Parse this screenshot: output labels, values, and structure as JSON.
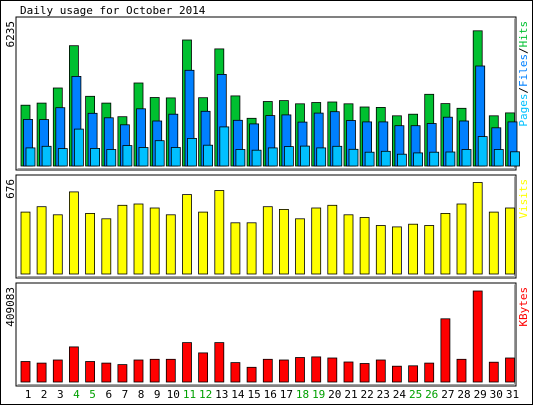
{
  "title": "Daily usage for October 2014",
  "colors": {
    "background": "#ffffff",
    "panel_bg": "#ffffff",
    "pages": "#00c0ff",
    "files": "#0080ff",
    "hits": "#00c030",
    "visits": "#ffff00",
    "kbytes": "#ff0000",
    "weekend_day": "#00a000",
    "weekday": "#000000",
    "frame_outer": "#000000",
    "frame_gray": "#a0a0a0"
  },
  "chart_data": [
    {
      "type": "bar",
      "panel": "hits",
      "ylabel_max": "6235",
      "ymax": 6235,
      "legend": [
        {
          "text": "Pages",
          "color_key": "pages"
        },
        {
          "text": "/",
          "color_key": "weekday"
        },
        {
          "text": "Files",
          "color_key": "files"
        },
        {
          "text": "/",
          "color_key": "weekday"
        },
        {
          "text": "Hits",
          "color_key": "hits"
        }
      ],
      "categories": [
        "1",
        "2",
        "3",
        "4",
        "5",
        "6",
        "7",
        "8",
        "9",
        "10",
        "11",
        "12",
        "13",
        "14",
        "15",
        "16",
        "17",
        "18",
        "19",
        "20",
        "21",
        "22",
        "23",
        "24",
        "25",
        "26",
        "27",
        "28",
        "29",
        "30",
        "31"
      ],
      "weekend": [
        4,
        5,
        11,
        12,
        18,
        19,
        25,
        26
      ],
      "series": [
        {
          "name": "Hits",
          "color_key": "hits",
          "values": [
            2690,
            2780,
            3450,
            5320,
            3080,
            2780,
            2180,
            3670,
            3030,
            3010,
            5570,
            3020,
            5180,
            3100,
            2110,
            2850,
            2890,
            2750,
            2810,
            2830,
            2750,
            2610,
            2590,
            2220,
            2290,
            3170,
            2760,
            2550,
            5980,
            2220,
            2350
          ]
        },
        {
          "name": "Files",
          "color_key": "files",
          "values": [
            2060,
            2050,
            2580,
            3960,
            2330,
            2130,
            1820,
            2530,
            1990,
            2290,
            4230,
            2420,
            4050,
            2020,
            1860,
            2230,
            2260,
            1940,
            2340,
            2400,
            2010,
            1950,
            1950,
            1780,
            1780,
            1880,
            2160,
            1990,
            4420,
            1690,
            1950
          ]
        },
        {
          "name": "Pages",
          "color_key": "pages",
          "values": [
            800,
            870,
            770,
            1630,
            780,
            730,
            900,
            820,
            1120,
            820,
            1220,
            920,
            1730,
            730,
            700,
            800,
            860,
            880,
            800,
            870,
            740,
            610,
            650,
            520,
            580,
            610,
            620,
            730,
            1300,
            730,
            630
          ]
        }
      ]
    },
    {
      "type": "bar",
      "panel": "visits",
      "ylabel_max": "676",
      "ymax": 676,
      "legend": [
        {
          "text": "Visits",
          "color_key": "visits"
        }
      ],
      "categories": [
        "1",
        "2",
        "3",
        "4",
        "5",
        "6",
        "7",
        "8",
        "9",
        "10",
        "11",
        "12",
        "13",
        "14",
        "15",
        "16",
        "17",
        "18",
        "19",
        "20",
        "21",
        "22",
        "23",
        "24",
        "25",
        "26",
        "27",
        "28",
        "29",
        "30",
        "31"
      ],
      "series": [
        {
          "name": "Visits",
          "color_key": "visits",
          "values": [
            460,
            500,
            440,
            610,
            450,
            410,
            510,
            520,
            490,
            440,
            590,
            460,
            620,
            380,
            380,
            500,
            480,
            410,
            490,
            510,
            440,
            420,
            360,
            350,
            370,
            360,
            450,
            520,
            680,
            460,
            490
          ]
        }
      ]
    },
    {
      "type": "bar",
      "panel": "kbytes",
      "ylabel_max": "409083",
      "ymax": 409083,
      "legend": [
        {
          "text": "KBytes",
          "color_key": "kbytes"
        }
      ],
      "categories": [
        "1",
        "2",
        "3",
        "4",
        "5",
        "6",
        "7",
        "8",
        "9",
        "10",
        "11",
        "12",
        "13",
        "14",
        "15",
        "16",
        "17",
        "18",
        "19",
        "20",
        "21",
        "22",
        "23",
        "24",
        "25",
        "26",
        "27",
        "28",
        "29",
        "30",
        "31"
      ],
      "series": [
        {
          "name": "KBytes",
          "color_key": "kbytes",
          "values": [
            92000,
            85000,
            99000,
            158000,
            92000,
            85000,
            78000,
            99000,
            102000,
            102000,
            177000,
            131000,
            177000,
            87000,
            66000,
            102000,
            99000,
            110000,
            113000,
            108000,
            90000,
            83000,
            99000,
            71000,
            73000,
            85000,
            284000,
            102000,
            409083,
            89000,
            108000
          ]
        }
      ]
    }
  ]
}
